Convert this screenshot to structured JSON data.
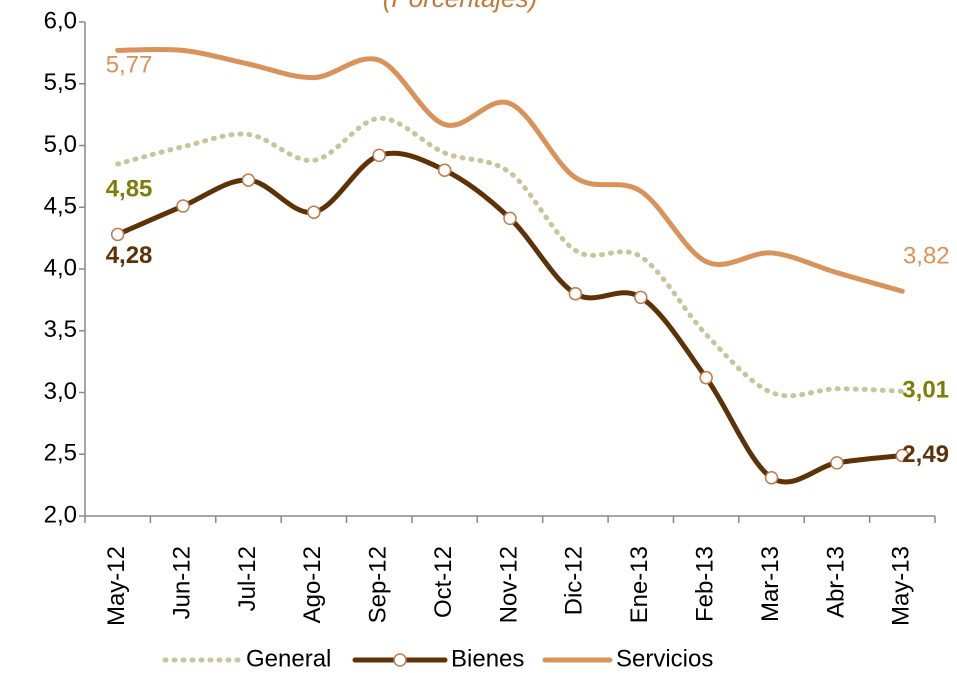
{
  "chart_data": {
    "type": "line",
    "subtitle": "(Porcentajes)",
    "categories": [
      "May-12",
      "Jun-12",
      "Jul-12",
      "Ago-12",
      "Sep-12",
      "Oct-12",
      "Nov-12",
      "Dic-12",
      "Ene-13",
      "Feb-13",
      "Mar-13",
      "Abr-13",
      "May-13"
    ],
    "series": [
      {
        "name": "General",
        "color": "#c9c49c",
        "label_color": "#7d7d08",
        "dash": "dotted",
        "markers": false,
        "values": [
          4.85,
          4.99,
          5.09,
          4.88,
          5.22,
          4.94,
          4.78,
          4.15,
          4.1,
          3.47,
          3.0,
          3.03,
          3.01
        ],
        "value_labels": [
          "4,85",
          null,
          null,
          null,
          null,
          null,
          null,
          null,
          null,
          null,
          null,
          null,
          "3,01"
        ]
      },
      {
        "name": "Bienes",
        "color": "#5c3206",
        "label_color": "#5c3206",
        "dash": "solid",
        "markers": true,
        "values": [
          4.28,
          4.51,
          4.72,
          4.46,
          4.92,
          4.8,
          4.41,
          3.8,
          3.77,
          3.12,
          2.31,
          2.43,
          2.49
        ],
        "value_labels": [
          "4,28",
          null,
          null,
          null,
          null,
          null,
          null,
          null,
          null,
          null,
          null,
          null,
          "2,49"
        ]
      },
      {
        "name": "Servicios",
        "color": "#d9935a",
        "label_color": "#d9935a",
        "dash": "solid",
        "markers": false,
        "values": [
          5.77,
          5.77,
          5.66,
          5.55,
          5.69,
          5.17,
          5.34,
          4.74,
          4.63,
          4.06,
          4.13,
          3.97,
          3.82
        ],
        "value_labels": [
          "5,77",
          null,
          null,
          null,
          null,
          null,
          null,
          null,
          null,
          null,
          null,
          null,
          "3,82"
        ]
      }
    ],
    "ylim": [
      2.0,
      6.0
    ],
    "yticks": [
      {
        "value": 2.0,
        "label": "2,0"
      },
      {
        "value": 2.5,
        "label": "2,5"
      },
      {
        "value": 3.0,
        "label": "3,0"
      },
      {
        "value": 3.5,
        "label": "3,5"
      },
      {
        "value": 4.0,
        "label": "4,0"
      },
      {
        "value": 4.5,
        "label": "4,5"
      },
      {
        "value": 5.0,
        "label": "5,0"
      },
      {
        "value": 5.5,
        "label": "5,5"
      },
      {
        "value": 6.0,
        "label": "6,0"
      }
    ],
    "legend": "bottom",
    "grid": false
  }
}
